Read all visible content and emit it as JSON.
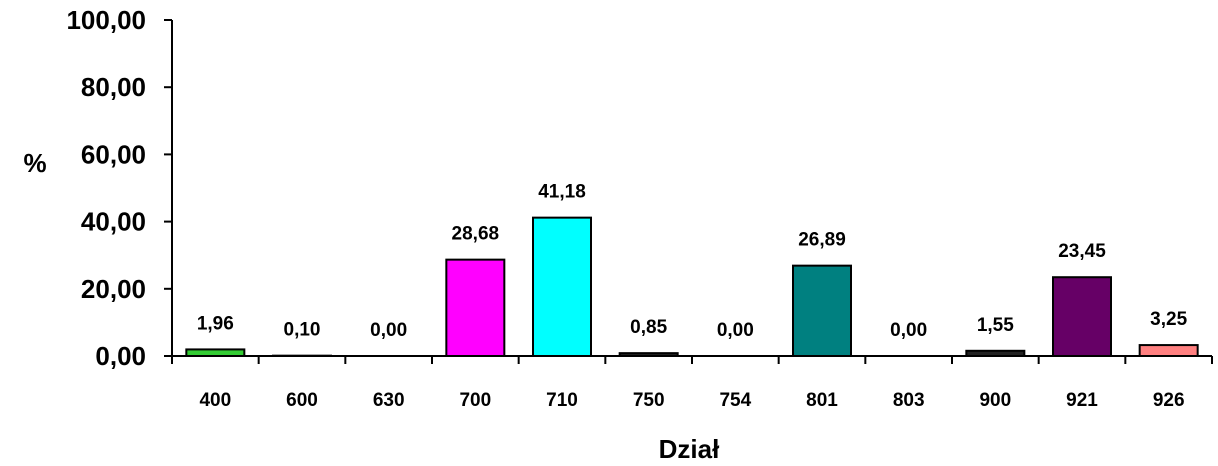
{
  "chart_data": {
    "type": "bar",
    "title": "",
    "xlabel": "Dział",
    "ylabel": "%",
    "ylim": [
      0,
      100
    ],
    "yticks": [
      "0,00",
      "20,00",
      "40,00",
      "60,00",
      "80,00",
      "100,00"
    ],
    "ytick_values": [
      0,
      20,
      40,
      60,
      80,
      100
    ],
    "grid": false,
    "categories": [
      "400",
      "600",
      "630",
      "700",
      "710",
      "750",
      "754",
      "801",
      "803",
      "900",
      "921",
      "926"
    ],
    "values": [
      1.96,
      0.1,
      0.0,
      28.68,
      41.18,
      0.85,
      0.0,
      26.89,
      0.0,
      1.55,
      23.45,
      3.25
    ],
    "value_labels": [
      "1,96",
      "0,10",
      "0,00",
      "28,68",
      "41,18",
      "0,85",
      "0,00",
      "26,89",
      "0,00",
      "1,55",
      "23,45",
      "3,25"
    ],
    "colors": [
      "#33cc33",
      "#cccccc",
      "#cccccc",
      "#ff00ff",
      "#00ffff",
      "#222222",
      "#cccccc",
      "#008080",
      "#cccccc",
      "#222222",
      "#660066",
      "#ff8080"
    ]
  }
}
